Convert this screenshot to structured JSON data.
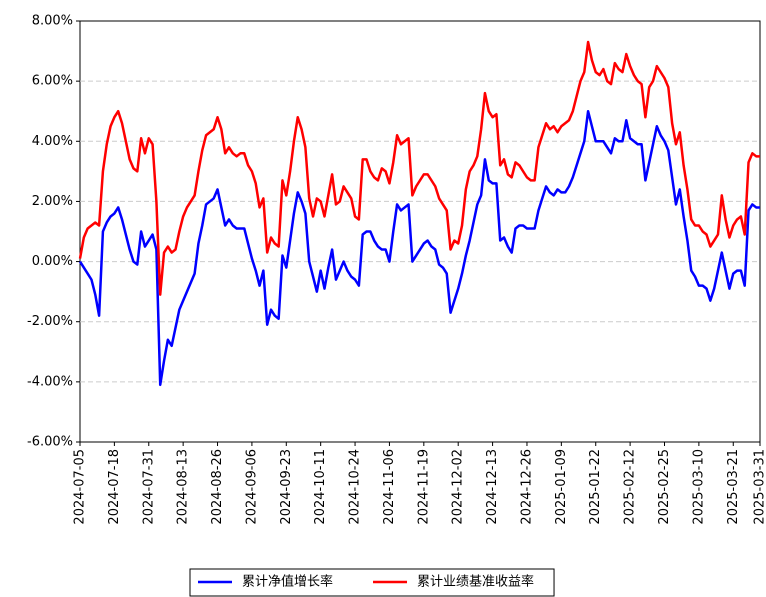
{
  "chart_data": {
    "type": "line",
    "categories": [
      "2024-07-05",
      null,
      null,
      null,
      null,
      null,
      null,
      null,
      null,
      "2024-07-18",
      null,
      null,
      null,
      null,
      null,
      null,
      null,
      null,
      "2024-07-31",
      null,
      null,
      null,
      null,
      null,
      null,
      null,
      null,
      "2024-08-13",
      null,
      null,
      null,
      null,
      null,
      null,
      null,
      null,
      "2024-08-26",
      null,
      null,
      null,
      null,
      null,
      null,
      null,
      null,
      "2024-09-06",
      null,
      null,
      null,
      null,
      null,
      null,
      null,
      null,
      "2024-09-23",
      null,
      null,
      null,
      null,
      null,
      null,
      null,
      null,
      "2024-10-11",
      null,
      null,
      null,
      null,
      null,
      null,
      null,
      null,
      "2024-10-24",
      null,
      null,
      null,
      null,
      null,
      null,
      null,
      null,
      "2024-11-06",
      null,
      null,
      null,
      null,
      null,
      null,
      null,
      null,
      "2024-11-19",
      null,
      null,
      null,
      null,
      null,
      null,
      null,
      null,
      "2024-12-02",
      null,
      null,
      null,
      null,
      null,
      null,
      null,
      null,
      "2024-12-13",
      null,
      null,
      null,
      null,
      null,
      null,
      null,
      null,
      "2024-12-26",
      null,
      null,
      null,
      null,
      null,
      null,
      null,
      null,
      "2025-01-09",
      null,
      null,
      null,
      null,
      null,
      null,
      null,
      null,
      "2025-01-22",
      null,
      null,
      null,
      null,
      null,
      null,
      null,
      null,
      "2025-02-12",
      null,
      null,
      null,
      null,
      null,
      null,
      null,
      null,
      "2025-02-25",
      null,
      null,
      null,
      null,
      null,
      null,
      null,
      null,
      "2025-03-10",
      null,
      null,
      null,
      null,
      null,
      null,
      null,
      null,
      "2025-03-21",
      null,
      null,
      null,
      null,
      null,
      null,
      "2025-03-31"
    ],
    "series": [
      {
        "name": "累计净值增长率",
        "color": "#0000ff",
        "values": [
          0,
          -0.2,
          -0.4,
          -0.6,
          -1.1,
          -1.8,
          1.0,
          1.3,
          1.5,
          1.6,
          1.8,
          1.4,
          0.9,
          0.4,
          0.0,
          -0.1,
          1.0,
          0.5,
          0.7,
          0.9,
          0.4,
          -4.1,
          -3.3,
          -2.6,
          -2.8,
          -2.2,
          -1.6,
          -1.3,
          -1.0,
          -0.7,
          -0.4,
          0.6,
          1.2,
          1.9,
          2.0,
          2.1,
          2.4,
          1.8,
          1.2,
          1.4,
          1.2,
          1.1,
          1.1,
          1.1,
          0.6,
          0.1,
          -0.3,
          -0.8,
          -0.3,
          -2.1,
          -1.6,
          -1.8,
          -1.9,
          0.2,
          -0.2,
          0.7,
          1.6,
          2.3,
          2.0,
          1.6,
          0.0,
          -0.5,
          -1.0,
          -0.3,
          -0.9,
          -0.2,
          0.4,
          -0.6,
          -0.3,
          0.0,
          -0.3,
          -0.5,
          -0.6,
          -0.8,
          0.9,
          1.0,
          1.0,
          0.7,
          0.5,
          0.4,
          0.4,
          0.0,
          1.0,
          1.9,
          1.7,
          1.8,
          1.9,
          0.0,
          0.2,
          0.4,
          0.6,
          0.7,
          0.5,
          0.4,
          -0.1,
          -0.2,
          -0.4,
          -1.7,
          -1.3,
          -0.9,
          -0.4,
          0.2,
          0.7,
          1.3,
          1.9,
          2.2,
          3.4,
          2.7,
          2.6,
          2.6,
          0.7,
          0.8,
          0.5,
          0.3,
          1.1,
          1.2,
          1.2,
          1.1,
          1.1,
          1.1,
          1.7,
          2.1,
          2.5,
          2.3,
          2.2,
          2.4,
          2.3,
          2.3,
          2.5,
          2.8,
          3.2,
          3.6,
          4.0,
          5.0,
          4.5,
          4.0,
          4.0,
          4.0,
          3.8,
          3.6,
          4.1,
          4.0,
          4.0,
          4.7,
          4.1,
          4.0,
          3.9,
          3.9,
          2.7,
          3.3,
          3.9,
          4.5,
          4.2,
          4.0,
          3.7,
          2.8,
          1.9,
          2.4,
          1.5,
          0.7,
          -0.3,
          -0.5,
          -0.8,
          -0.8,
          -0.9,
          -1.3,
          -0.9,
          -0.3,
          0.3,
          -0.3,
          -0.9,
          -0.4,
          -0.3,
          -0.3,
          -0.8,
          1.7,
          1.9,
          1.8,
          1.8
        ]
      },
      {
        "name": "累计业绩基准收益率",
        "color": "#ff0000",
        "values": [
          0.1,
          0.8,
          1.1,
          1.2,
          1.3,
          1.2,
          3.0,
          3.9,
          4.5,
          4.8,
          5.0,
          4.6,
          4.0,
          3.4,
          3.1,
          3.0,
          4.1,
          3.6,
          4.1,
          3.9,
          2.0,
          -1.1,
          0.3,
          0.5,
          0.3,
          0.4,
          1.0,
          1.5,
          1.8,
          2.0,
          2.2,
          3.0,
          3.7,
          4.2,
          4.3,
          4.4,
          4.8,
          4.4,
          3.6,
          3.8,
          3.6,
          3.5,
          3.6,
          3.6,
          3.2,
          3.0,
          2.6,
          1.8,
          2.1,
          0.3,
          0.8,
          0.6,
          0.5,
          2.7,
          2.2,
          3.0,
          4.0,
          4.8,
          4.4,
          3.8,
          2.1,
          1.5,
          2.1,
          2.0,
          1.5,
          2.2,
          2.9,
          1.9,
          2.0,
          2.5,
          2.3,
          2.1,
          1.5,
          1.4,
          3.4,
          3.4,
          3.0,
          2.8,
          2.7,
          3.1,
          3.0,
          2.6,
          3.3,
          4.2,
          3.9,
          4.0,
          4.1,
          2.2,
          2.5,
          2.7,
          2.9,
          2.9,
          2.7,
          2.5,
          2.1,
          1.9,
          1.7,
          0.4,
          0.7,
          0.6,
          1.2,
          2.4,
          3.0,
          3.2,
          3.5,
          4.4,
          5.6,
          5.0,
          4.8,
          4.9,
          3.2,
          3.4,
          2.9,
          2.8,
          3.3,
          3.2,
          3.0,
          2.8,
          2.7,
          2.7,
          3.8,
          4.2,
          4.6,
          4.4,
          4.5,
          4.3,
          4.5,
          4.6,
          4.7,
          5.0,
          5.5,
          6.0,
          6.3,
          7.3,
          6.7,
          6.3,
          6.2,
          6.4,
          6.0,
          5.9,
          6.6,
          6.4,
          6.3,
          6.9,
          6.5,
          6.2,
          6.0,
          5.9,
          4.8,
          5.8,
          6.0,
          6.5,
          6.3,
          6.1,
          5.8,
          4.6,
          3.9,
          4.3,
          3.2,
          2.4,
          1.4,
          1.2,
          1.2,
          1.0,
          0.9,
          0.5,
          0.7,
          0.9,
          2.2,
          1.4,
          0.8,
          1.2,
          1.4,
          1.5,
          0.9,
          3.3,
          3.6,
          3.5,
          3.5
        ]
      }
    ],
    "ylim": [
      -6,
      8
    ],
    "yticks": [
      {
        "value": -6,
        "label": "-6.00%"
      },
      {
        "value": -4,
        "label": "-4.00%"
      },
      {
        "value": -2,
        "label": "-2.00%"
      },
      {
        "value": 0,
        "label": "0.00%"
      },
      {
        "value": 2,
        "label": "2.00%"
      },
      {
        "value": 4,
        "label": "4.00%"
      },
      {
        "value": 6,
        "label": "6.00%"
      },
      {
        "value": 8,
        "label": "8.00%"
      }
    ],
    "grid": true,
    "legend": "bottom"
  }
}
